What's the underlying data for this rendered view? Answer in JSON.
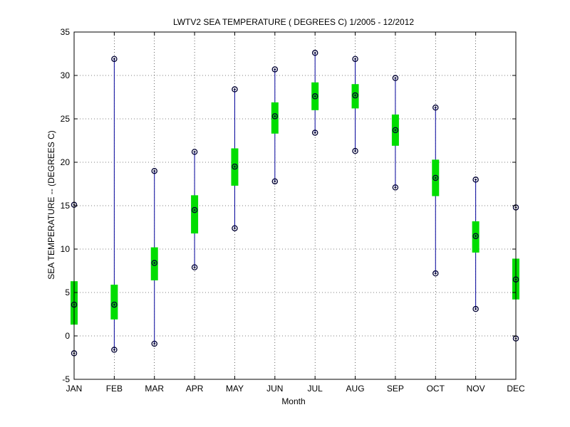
{
  "chart_data": {
    "type": "boxplot",
    "title": "LWTV2  SEA TEMPERATURE ( DEGREES C) 1/2005 - 12/2012",
    "xlabel": "Month",
    "ylabel": "SEA TEMPERATURE -- (DEGREES C)",
    "ylim": [
      -5,
      35
    ],
    "yticks": [
      -5,
      0,
      5,
      10,
      15,
      20,
      25,
      30,
      35
    ],
    "grid": true,
    "categories": [
      "JAN",
      "FEB",
      "MAR",
      "APR",
      "MAY",
      "JUN",
      "JUL",
      "AUG",
      "SEP",
      "OCT",
      "NOV",
      "DEC"
    ],
    "min": [
      -2.0,
      -1.6,
      -0.9,
      7.9,
      12.4,
      17.8,
      23.4,
      21.3,
      17.1,
      7.2,
      3.1,
      -0.3
    ],
    "q1": [
      1.3,
      1.9,
      6.4,
      11.8,
      17.3,
      23.3,
      26.0,
      26.2,
      21.9,
      16.1,
      9.6,
      4.2
    ],
    "median": [
      3.6,
      3.6,
      8.4,
      14.5,
      19.5,
      25.3,
      27.6,
      27.7,
      23.7,
      18.2,
      11.5,
      6.5
    ],
    "q3": [
      6.3,
      5.9,
      10.2,
      16.2,
      21.6,
      26.9,
      29.2,
      29.0,
      25.5,
      20.3,
      13.2,
      8.9
    ],
    "max": [
      15.1,
      31.9,
      19.0,
      21.2,
      28.4,
      30.7,
      32.6,
      31.9,
      29.7,
      26.3,
      18.0,
      14.8
    ],
    "colors": {
      "box": "#00dd00",
      "whisker": "#000099",
      "marker": "#000033",
      "grid": "#000000"
    }
  }
}
